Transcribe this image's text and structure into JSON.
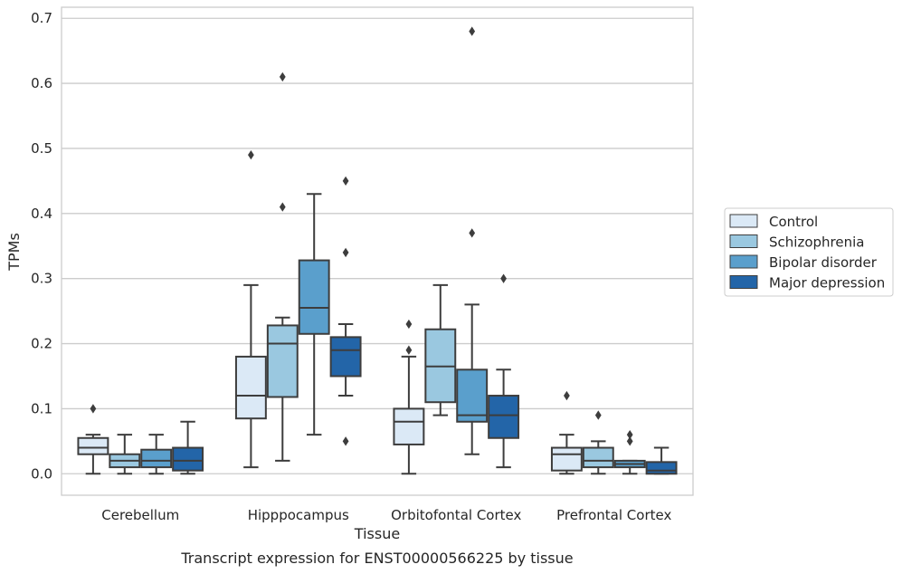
{
  "chart_data": {
    "type": "box",
    "title": "",
    "caption": "Transcript expression for ENST00000566225 by tissue",
    "xlabel": "Tissue",
    "ylabel": "TPMs",
    "ylim": [
      -0.033,
      0.717
    ],
    "yticks": [
      0.0,
      0.1,
      0.2,
      0.3,
      0.4,
      0.5,
      0.6,
      0.7
    ],
    "ytick_labels": [
      "0.0",
      "0.1",
      "0.2",
      "0.3",
      "0.4",
      "0.5",
      "0.6",
      "0.7"
    ],
    "grid": "horizontal",
    "legend_position": "right",
    "categories": [
      "Cerebellum",
      "Hipppocampus",
      "Orbitofontal Cortex",
      "Prefrontal Cortex"
    ],
    "series": [
      {
        "name": "Control",
        "color": "#dbe9f6",
        "boxes": [
          {
            "whisker_low": 0.0,
            "q1": 0.03,
            "median": 0.04,
            "q3": 0.055,
            "whisker_high": 0.06,
            "outliers": [
              0.1
            ]
          },
          {
            "whisker_low": 0.01,
            "q1": 0.085,
            "median": 0.12,
            "q3": 0.18,
            "whisker_high": 0.29,
            "outliers": [
              0.49
            ]
          },
          {
            "whisker_low": 0.0,
            "q1": 0.045,
            "median": 0.08,
            "q3": 0.1,
            "whisker_high": 0.18,
            "outliers": [
              0.19,
              0.23
            ]
          },
          {
            "whisker_low": 0.0,
            "q1": 0.005,
            "median": 0.03,
            "q3": 0.04,
            "whisker_high": 0.06,
            "outliers": [
              0.12
            ]
          }
        ]
      },
      {
        "name": "Schizophrenia",
        "color": "#9ac8e0",
        "boxes": [
          {
            "whisker_low": 0.0,
            "q1": 0.01,
            "median": 0.02,
            "q3": 0.03,
            "whisker_high": 0.06,
            "outliers": []
          },
          {
            "whisker_low": 0.02,
            "q1": 0.118,
            "median": 0.2,
            "q3": 0.228,
            "whisker_high": 0.24,
            "outliers": [
              0.41,
              0.61
            ]
          },
          {
            "whisker_low": 0.09,
            "q1": 0.11,
            "median": 0.165,
            "q3": 0.222,
            "whisker_high": 0.29,
            "outliers": []
          },
          {
            "whisker_low": 0.0,
            "q1": 0.01,
            "median": 0.02,
            "q3": 0.04,
            "whisker_high": 0.05,
            "outliers": [
              0.09
            ]
          }
        ]
      },
      {
        "name": "Bipolar disorder",
        "color": "#5a9fcc",
        "boxes": [
          {
            "whisker_low": 0.0,
            "q1": 0.01,
            "median": 0.02,
            "q3": 0.037,
            "whisker_high": 0.06,
            "outliers": []
          },
          {
            "whisker_low": 0.06,
            "q1": 0.215,
            "median": 0.255,
            "q3": 0.328,
            "whisker_high": 0.43,
            "outliers": []
          },
          {
            "whisker_low": 0.03,
            "q1": 0.08,
            "median": 0.09,
            "q3": 0.16,
            "whisker_high": 0.26,
            "outliers": [
              0.37,
              0.68
            ]
          },
          {
            "whisker_low": 0.0,
            "q1": 0.01,
            "median": 0.015,
            "q3": 0.02,
            "whisker_high": 0.02,
            "outliers": [
              0.05,
              0.06
            ]
          }
        ]
      },
      {
        "name": "Major depression",
        "color": "#2365a8",
        "boxes": [
          {
            "whisker_low": 0.0,
            "q1": 0.005,
            "median": 0.02,
            "q3": 0.04,
            "whisker_high": 0.08,
            "outliers": []
          },
          {
            "whisker_low": 0.12,
            "q1": 0.15,
            "median": 0.19,
            "q3": 0.21,
            "whisker_high": 0.23,
            "outliers": [
              0.05,
              0.34,
              0.45
            ]
          },
          {
            "whisker_low": 0.01,
            "q1": 0.055,
            "median": 0.09,
            "q3": 0.12,
            "whisker_high": 0.16,
            "outliers": [
              0.3
            ]
          },
          {
            "whisker_low": 0.0,
            "q1": 0.0,
            "median": 0.005,
            "q3": 0.018,
            "whisker_high": 0.04,
            "outliers": []
          }
        ]
      }
    ]
  }
}
